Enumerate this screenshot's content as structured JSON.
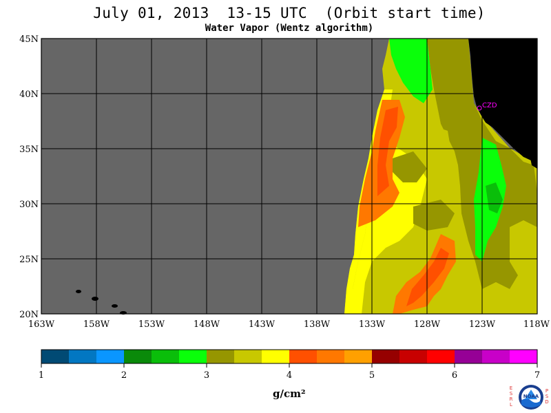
{
  "title": "July 01, 2013  13-15 UTC  (Orbit start time)",
  "subtitle": "Water Vapor (Wentz algorithm)",
  "station_label": "CZD",
  "map": {
    "lon_range": [
      -163,
      -118
    ],
    "lat_range": [
      20,
      45
    ],
    "lon_ticks": [
      {
        "value": -163,
        "label": "163W"
      },
      {
        "value": -158,
        "label": "158W"
      },
      {
        "value": -153,
        "label": "153W"
      },
      {
        "value": -148,
        "label": "148W"
      },
      {
        "value": -143,
        "label": "143W"
      },
      {
        "value": -138,
        "label": "138W"
      },
      {
        "value": -133,
        "label": "133W"
      },
      {
        "value": -128,
        "label": "128W"
      },
      {
        "value": -123,
        "label": "123W"
      },
      {
        "value": -118,
        "label": "118W"
      }
    ],
    "lat_ticks": [
      {
        "value": 20,
        "label": "20N"
      },
      {
        "value": 25,
        "label": "25N"
      },
      {
        "value": 30,
        "label": "30N"
      },
      {
        "value": 35,
        "label": "35N"
      },
      {
        "value": 40,
        "label": "40N"
      },
      {
        "value": 45,
        "label": "45N"
      }
    ],
    "no_data_color": "#666666",
    "land_color": "#000000",
    "grid_color": "#000000"
  },
  "colorbar": {
    "min": 1,
    "max": 7,
    "units": "g/cm²",
    "tick_labels": [
      "1",
      "2",
      "3",
      "4",
      "5",
      "6",
      "7"
    ],
    "colors": [
      "#014a74",
      "#0277c2",
      "#0a96ff",
      "#0a8a0a",
      "#0abe0a",
      "#0aff0a",
      "#969600",
      "#c8c800",
      "#ffff00",
      "#ff5000",
      "#ff7800",
      "#ffa000",
      "#960000",
      "#c80000",
      "#ff0000",
      "#960096",
      "#c800c8",
      "#ff00ff"
    ]
  },
  "logo": {
    "left_text": "ESRL",
    "right_text": "PSD",
    "center_text": "NOAA"
  }
}
